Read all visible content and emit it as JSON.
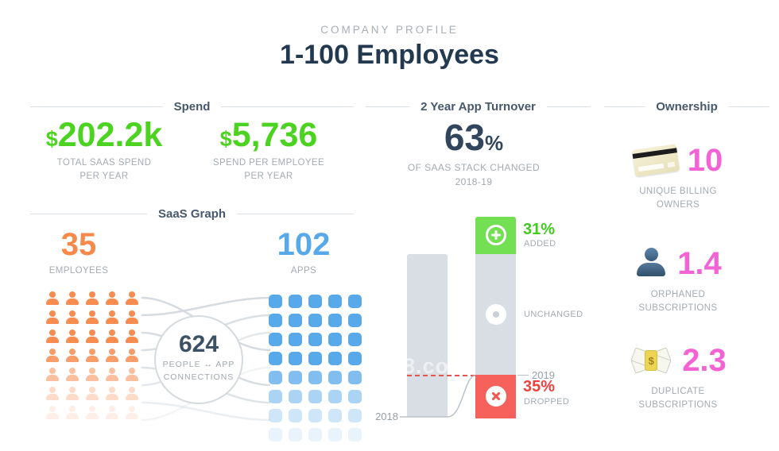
{
  "header": {
    "eyebrow": "COMPANY PROFILE",
    "title": "1-100 Employees"
  },
  "spend": {
    "section_title": "Spend",
    "stats": [
      {
        "currency": "$",
        "value": "202.2k",
        "label_line1": "TOTAL SAAS SPEND",
        "label_line2": "PER YEAR"
      },
      {
        "currency": "$",
        "value": "5,736",
        "label_line1": "SPEND PER EMPLOYEE",
        "label_line2": "PER YEAR"
      }
    ]
  },
  "saas_graph": {
    "section_title": "SaaS Graph",
    "employees": {
      "value": "35",
      "label": "EMPLOYEES"
    },
    "apps": {
      "value": "102",
      "label": "APPS"
    },
    "connections": {
      "value": "624",
      "label_line1": "PEOPLE ↔ APP",
      "label_line2": "CONNECTIONS"
    },
    "people_grid": {
      "cols": 5,
      "rows": 7
    },
    "apps_grid": {
      "cols": 5,
      "rows": 8
    }
  },
  "turnover": {
    "section_title": "2 Year App Turnover",
    "headline_value": "63",
    "headline_unit": "%",
    "headline_label_line1": "OF SAAS STACK CHANGED",
    "headline_label_line2": "2018-19",
    "chart": {
      "year_left": "2018",
      "year_right": "2019",
      "added_pct": "31%",
      "added_label": "ADDED",
      "unchanged_label": "UNCHANGED",
      "dropped_pct": "35%",
      "dropped_label": "DROPPED",
      "watermark": "8.co"
    }
  },
  "ownership": {
    "section_title": "Ownership",
    "stats": [
      {
        "icon": "credit-card-icon",
        "value": "10",
        "label_line1": "UNIQUE BILLING",
        "label_line2": "OWNERS"
      },
      {
        "icon": "person-icon",
        "value": "1.4",
        "label_line1": "ORPHANED",
        "label_line2": "SUBSCRIPTIONS"
      },
      {
        "icon": "money-icon",
        "value": "2.3",
        "label_line1": "DUPLICATE",
        "label_line2": "SUBSCRIPTIONS"
      }
    ]
  },
  "colors": {
    "green_text": "#4cd321",
    "green_bar": "#72e052",
    "pink": "#f463d3",
    "orange": "#f78a4a",
    "blue": "#57a9ea",
    "navy": "#2c4257",
    "gray_label": "#a3abb2",
    "gray_bar": "#d9dee4",
    "red_bar": "#f7615c",
    "red_text": "#f2413d"
  },
  "chart_data": [
    {
      "type": "table",
      "title": "Company Profile — 1-100 Employees",
      "columns": [
        "Metric",
        "Value"
      ],
      "rows": [
        [
          "Total SaaS spend per year",
          "$202.2k"
        ],
        [
          "Spend per employee per year",
          "$5,736"
        ],
        [
          "Employees",
          35
        ],
        [
          "Apps",
          102
        ],
        [
          "People ↔ app connections",
          624
        ],
        [
          "SaaS stack changed 2018-19",
          "63%"
        ],
        [
          "Unique billing owners",
          10
        ],
        [
          "Orphaned subscriptions",
          1.4
        ],
        [
          "Duplicate subscriptions",
          2.3
        ]
      ]
    },
    {
      "type": "bar",
      "title": "2 Year App Turnover",
      "subtitle": "63% of SaaS stack changed 2018-19",
      "categories": [
        "2018",
        "2019"
      ],
      "series": [
        {
          "name": "Added",
          "values": [
            null,
            31
          ],
          "color": "#72e052",
          "label": "31% ADDED"
        },
        {
          "name": "Unchanged",
          "values": [
            100,
            null
          ],
          "color": "#d9dee4",
          "label": "UNCHANGED"
        },
        {
          "name": "Dropped",
          "values": [
            null,
            35
          ],
          "color": "#f7615c",
          "label": "35% DROPPED"
        }
      ],
      "unit": "% of 2018 app stack",
      "annotations": [
        "2019 baseline marked with red dashed line",
        "2018 baseline connected to 2019 baseline by curved line"
      ],
      "grid": false,
      "legend_position": "right-of-bars"
    }
  ]
}
